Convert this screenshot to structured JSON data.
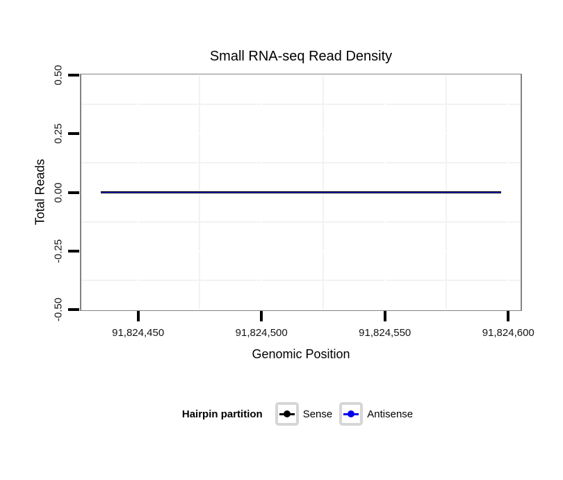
{
  "chart": {
    "title": "Small RNA-seq Read Density",
    "x_axis_label": "Genomic Position",
    "y_axis_label": "Total Reads"
  },
  "legend": {
    "title": "Hairpin partition",
    "items": [
      {
        "label": "Sense",
        "color": "#000000"
      },
      {
        "label": "Antisense",
        "color": "#0000ee"
      }
    ]
  },
  "colors": {
    "panel_border": "#828282",
    "minor_grid": "#f2f2f2",
    "tick": "#000000",
    "legend_key_border": "#d6d6d6"
  },
  "chart_data": {
    "type": "line",
    "title": "Small RNA-seq Read Density",
    "xlabel": "Genomic Position",
    "ylabel": "Total Reads",
    "xlim": [
      91824427,
      91824605
    ],
    "ylim": [
      -0.5,
      0.5
    ],
    "grid": "minor gridlines light gray, major gridlines white on white panel",
    "legend_title": "Hairpin partition",
    "legend_position": "bottom",
    "x_ticks": [
      {
        "value": 91824450,
        "label": "91,824,450"
      },
      {
        "value": 91824500,
        "label": "91,824,500"
      },
      {
        "value": 91824550,
        "label": "91,824,550"
      },
      {
        "value": 91824600,
        "label": "91,824,600"
      }
    ],
    "y_ticks": [
      {
        "value": 0.5,
        "label": "0.50"
      },
      {
        "value": 0.25,
        "label": "0.25"
      },
      {
        "value": 0.0,
        "label": "0.00"
      },
      {
        "value": -0.25,
        "label": "-0.25"
      },
      {
        "value": -0.5,
        "label": "-0.50"
      }
    ],
    "minor_x": [
      91824475,
      91824525,
      91824575
    ],
    "minor_y": [
      0.375,
      0.125,
      -0.125,
      -0.375
    ],
    "series": [
      {
        "name": "Sense",
        "color": "#000000",
        "line_width": 3.0,
        "x": [
          91824435,
          91824597
        ],
        "values": [
          0,
          0
        ]
      },
      {
        "name": "Antisense",
        "color": "#0000ee",
        "line_width": 1.4,
        "x": [
          91824435,
          91824597
        ],
        "values": [
          0,
          0
        ]
      }
    ]
  }
}
